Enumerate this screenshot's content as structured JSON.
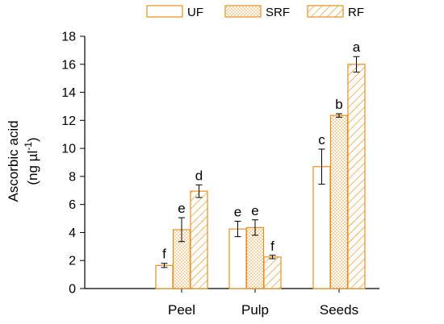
{
  "chart_data": {
    "type": "bar",
    "categories": [
      "Peel",
      "Pulp",
      "Seeds"
    ],
    "ylabel_line1": "Ascorbic acid",
    "ylabel_line2_prefix": "(ng µl",
    "ylabel_line2_sup": "-1",
    "ylabel_line2_suffix": ")",
    "ylim": [
      0,
      18
    ],
    "yticks": [
      0,
      2,
      4,
      6,
      8,
      10,
      12,
      14,
      16,
      18
    ],
    "grid": false,
    "legend_position": "top",
    "bar_color": "#E8901E",
    "series": [
      {
        "name": "UF",
        "pattern": "solid",
        "values": [
          1.65,
          4.25,
          8.7
        ],
        "errors": [
          0.15,
          0.55,
          1.25
        ],
        "letters": [
          "f",
          "e",
          "c"
        ]
      },
      {
        "name": "SRF",
        "pattern": "dotted",
        "values": [
          4.2,
          4.35,
          12.35
        ],
        "errors": [
          0.85,
          0.55,
          0.12
        ],
        "letters": [
          "e",
          "e",
          "b"
        ]
      },
      {
        "name": "RF",
        "pattern": "hatch",
        "values": [
          6.95,
          2.25,
          16.0
        ],
        "errors": [
          0.45,
          0.12,
          0.55
        ],
        "letters": [
          "d",
          "f",
          "a"
        ]
      }
    ]
  }
}
